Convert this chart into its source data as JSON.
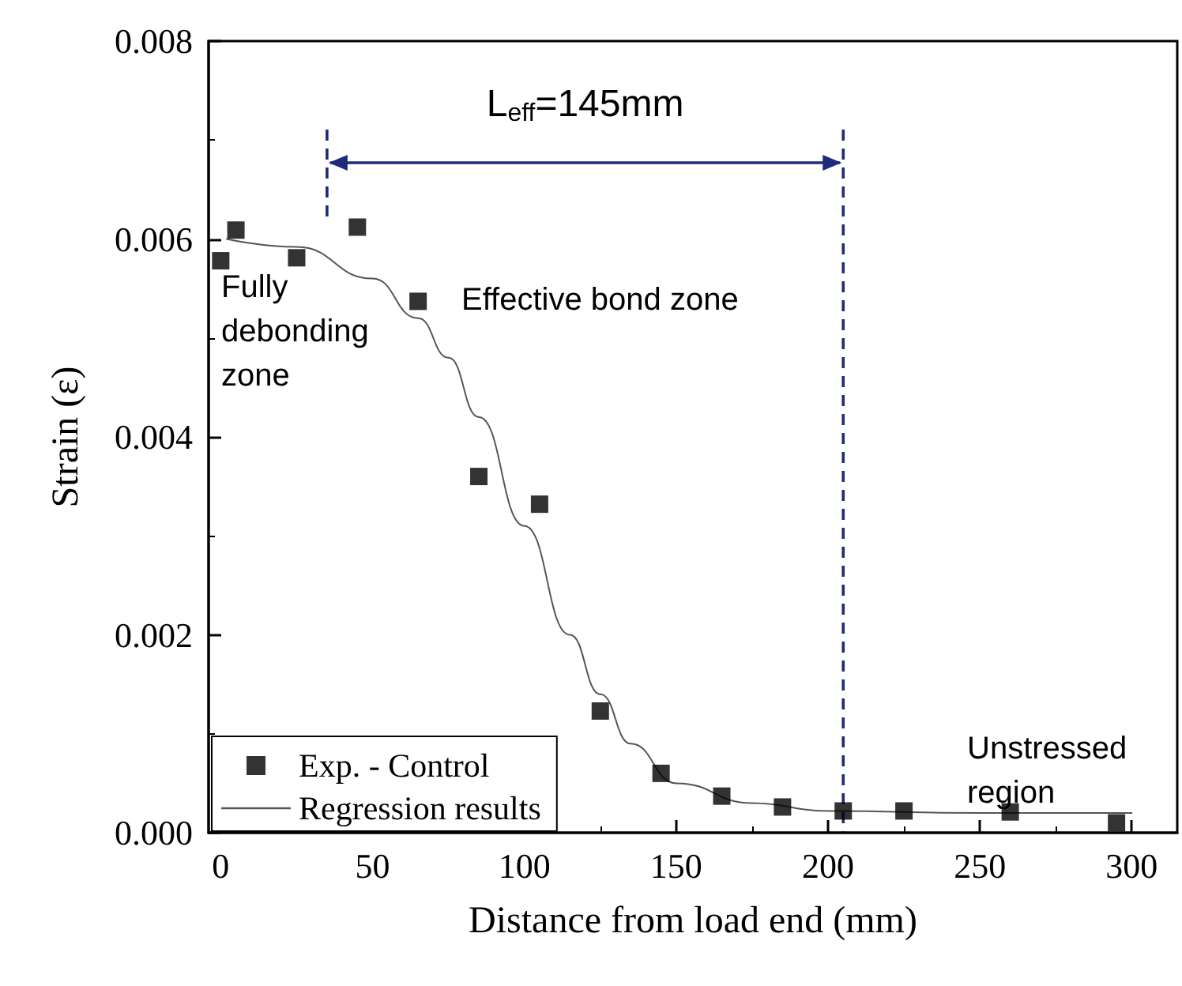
{
  "chart_data": {
    "type": "scatter",
    "xlabel": "Distance from load end (mm)",
    "ylabel": "Strain (ε)",
    "xlim": [
      -4,
      315
    ],
    "xticks": [
      0,
      50,
      100,
      150,
      200,
      250,
      300
    ],
    "ylim": [
      0,
      0.008
    ],
    "yticks": [
      {
        "value": 0,
        "label": "0.000"
      },
      {
        "value": 0.002,
        "label": "0.002"
      },
      {
        "value": 0.004,
        "label": "0.004"
      },
      {
        "value": 0.006,
        "label": "0.006"
      },
      {
        "value": 0.008,
        "label": "0.008"
      }
    ],
    "grid": false,
    "legend": "bottom left",
    "series": [
      {
        "name": "Exp. - Control",
        "marker": "square",
        "color": "#000000",
        "x": [
          0,
          5,
          25,
          45,
          65,
          85,
          105,
          125,
          145,
          165,
          185,
          205,
          225,
          260,
          295
        ],
        "values": [
          0.00578,
          0.00609,
          0.00581,
          0.00612,
          0.00537,
          0.0036,
          0.00332,
          0.00123,
          0.0006,
          0.00037,
          0.00026,
          0.00022,
          0.00022,
          0.00021,
          0.0001
        ]
      },
      {
        "name": "Regression results",
        "type": "line",
        "marker": "none",
        "line_style": "solid",
        "color": "#555555",
        "x": [
          2,
          25,
          50,
          65,
          75,
          85,
          100,
          115,
          125,
          135,
          150,
          175,
          200,
          250,
          300
        ],
        "values": [
          0.006,
          0.00592,
          0.0056,
          0.0052,
          0.0048,
          0.0042,
          0.0031,
          0.002,
          0.0014,
          0.0009,
          0.0005,
          0.0003,
          0.00022,
          0.0002,
          0.0002
        ]
      }
    ],
    "ref_lines": [
      {
        "axis": "x",
        "value": 35,
        "color": "#1f2a7a",
        "line_style": "dashed"
      },
      {
        "axis": "x",
        "value": 205,
        "color": "#1f2a7a",
        "line_style": "dashed"
      }
    ],
    "annotations": [
      "L$_{eff}$=145mm",
      "Fully\ndebonding\nzone",
      "Effective bond zone",
      "Unstressed\nregion"
    ]
  }
}
